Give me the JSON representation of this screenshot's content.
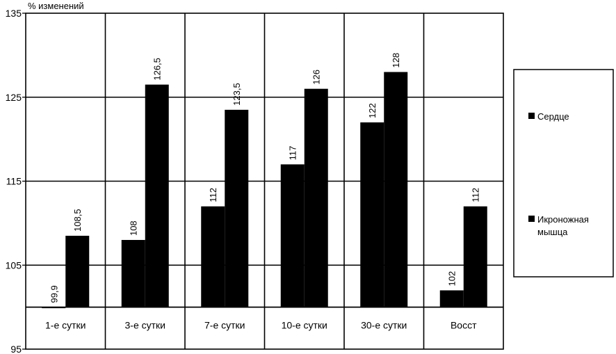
{
  "chart_data": {
    "type": "bar",
    "ylabel": "% изменений",
    "ylim": [
      95,
      135
    ],
    "yticks": [
      95,
      105,
      115,
      125,
      135
    ],
    "baseline": 100,
    "grid": true,
    "legend_position": "right",
    "categories": [
      "1-е сутки",
      "3-е сутки",
      "7-е сутки",
      "10-е сутки",
      "30-е сутки",
      "Восст"
    ],
    "series": [
      {
        "name": "Сердце",
        "values": [
          99.9,
          108,
          112,
          117,
          122,
          102
        ],
        "labels": [
          "99,9",
          "108",
          "112",
          "117",
          "122",
          "102"
        ],
        "color": "#000000"
      },
      {
        "name": "Икроножная мышца",
        "values": [
          108.5,
          126.5,
          123.5,
          126,
          128,
          112
        ],
        "labels": [
          "108,5",
          "126,5",
          "123,5",
          "126",
          "128",
          "112"
        ],
        "color": "#000000"
      }
    ]
  }
}
